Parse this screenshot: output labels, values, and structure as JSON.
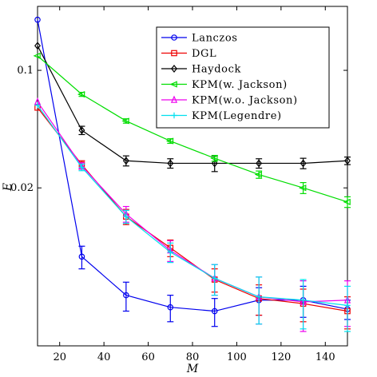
{
  "chart_data": {
    "type": "line",
    "xlabel": "M",
    "ylabel": "E",
    "xlim": [
      10,
      150
    ],
    "ylim": [
      0.0023,
      0.24
    ],
    "yscale": "log",
    "xticks": [
      20,
      40,
      60,
      80,
      100,
      120,
      140
    ],
    "yticks": [
      0.02,
      0.1
    ],
    "ytick_labels": [
      "0.02",
      "0.1"
    ],
    "legend_position": "top-right",
    "grid": false,
    "series": [
      {
        "name": "Lanczos",
        "color": "#0000ee",
        "marker": "circle",
        "x": [
          10,
          30,
          50,
          70,
          90,
          110,
          130,
          150
        ],
        "y": [
          0.2,
          0.0078,
          0.0046,
          0.0039,
          0.0037,
          0.0043,
          0.0043,
          0.0038
        ],
        "err": [
          0,
          0.0012,
          0.0009,
          0.0007,
          0.0007,
          0.0008,
          0.0009,
          0.0005
        ]
      },
      {
        "name": "DGL",
        "color": "#ee0000",
        "marker": "square",
        "x": [
          10,
          30,
          50,
          70,
          90,
          110,
          130,
          150
        ],
        "y": [
          0.06,
          0.0275,
          0.0135,
          0.0088,
          0.0057,
          0.0044,
          0.0041,
          0.0037
        ],
        "err": [
          0,
          0.0015,
          0.0014,
          0.001,
          0.0009,
          0.0009,
          0.0009,
          0.0008
        ]
      },
      {
        "name": "Haydock",
        "color": "#000000",
        "marker": "diamond",
        "x": [
          10,
          30,
          50,
          70,
          90,
          110,
          130,
          150
        ],
        "y": [
          0.14,
          0.044,
          0.029,
          0.028,
          0.028,
          0.028,
          0.028,
          0.029
        ],
        "err": [
          0,
          0.0025,
          0.002,
          0.0018,
          0.003,
          0.0018,
          0.002,
          0.0015
        ]
      },
      {
        "name": "KPM(w. Jackson)",
        "color": "#00dd00",
        "marker": "triangle-left",
        "x": [
          10,
          30,
          50,
          70,
          90,
          110,
          130,
          150
        ],
        "y": [
          0.122,
          0.072,
          0.05,
          0.038,
          0.03,
          0.024,
          0.02,
          0.0165
        ],
        "err": [
          0,
          0.002,
          0.0015,
          0.0012,
          0.0012,
          0.0012,
          0.0015,
          0.0012
        ]
      },
      {
        "name": "KPM(w.o. Jackson)",
        "color": "#ee00ee",
        "marker": "triangle-up",
        "x": [
          10,
          30,
          50,
          70,
          90,
          110,
          130,
          150
        ],
        "y": [
          0.065,
          0.027,
          0.014,
          0.0085,
          0.0058,
          0.0045,
          0.0042,
          0.0043
        ],
        "err": [
          0,
          0.0012,
          0.0015,
          0.0012,
          0.0012,
          0.0014,
          0.0014,
          0.0013
        ]
      },
      {
        "name": "KPM(Legendre)",
        "color": "#00e0ee",
        "marker": "plus",
        "x": [
          10,
          30,
          50,
          70,
          90,
          110,
          130,
          150
        ],
        "y": [
          0.062,
          0.0265,
          0.0135,
          0.0083,
          0.0058,
          0.0045,
          0.0043,
          0.004
        ],
        "err": [
          0,
          0.0012,
          0.0012,
          0.0011,
          0.0012,
          0.0014,
          0.0014,
          0.0012
        ]
      }
    ]
  }
}
